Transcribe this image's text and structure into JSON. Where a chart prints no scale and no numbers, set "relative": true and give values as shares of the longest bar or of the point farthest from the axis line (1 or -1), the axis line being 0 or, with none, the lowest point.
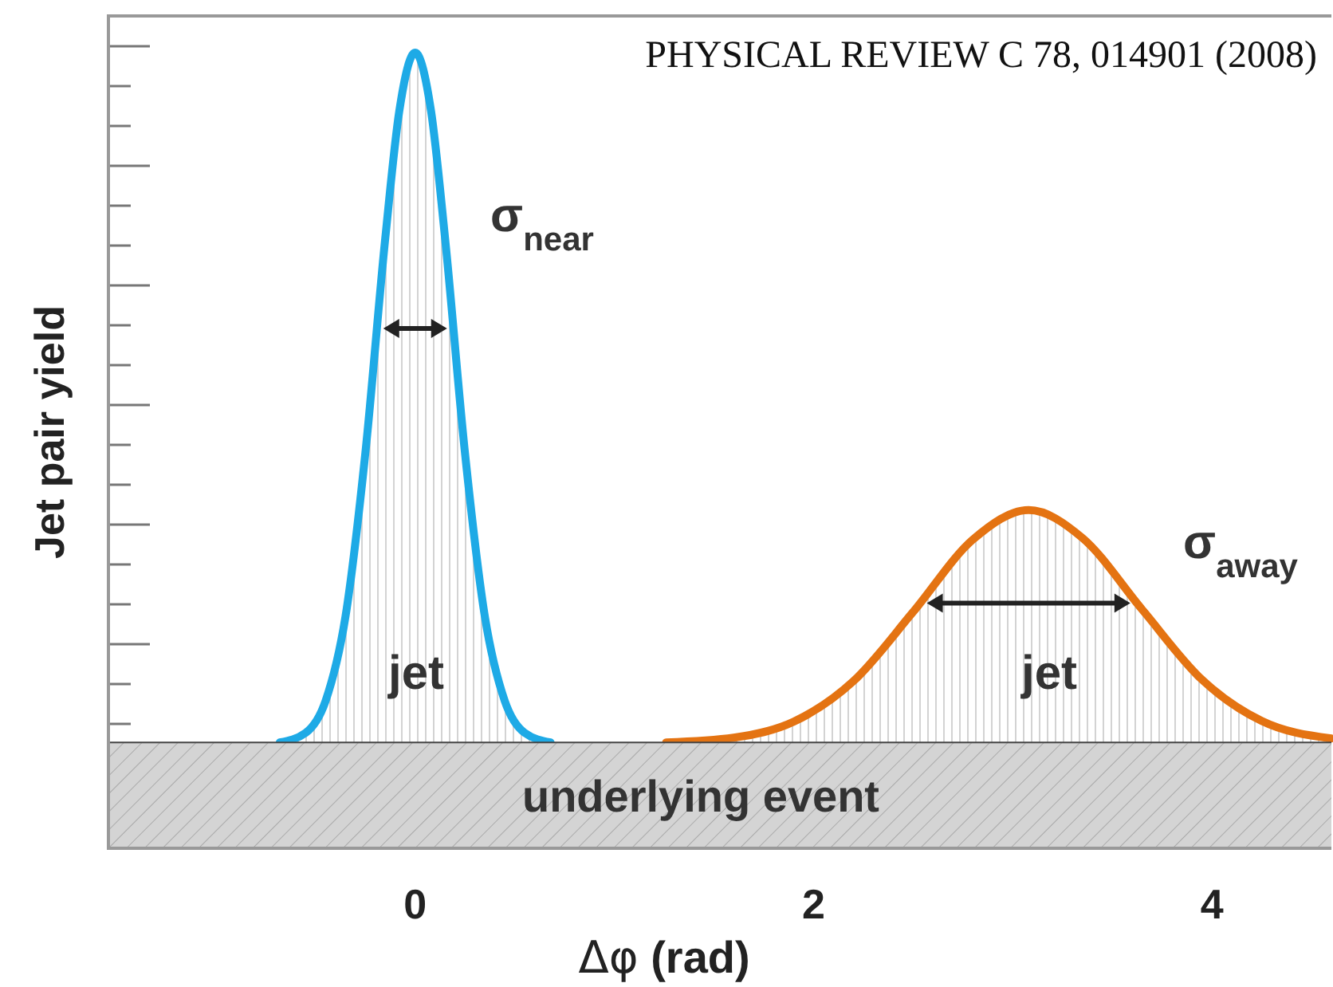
{
  "chart_data": {
    "type": "area",
    "relative": true,
    "xlabel": "Δφ (rad)",
    "ylabel": "Jet pair yield",
    "xlim": [
      -1.54,
      4.6
    ],
    "xticks": [
      0,
      2,
      4
    ],
    "series": [
      {
        "color": "#1eaae6",
        "x": [
          -0.68,
          -0.55,
          -0.45,
          -0.35,
          -0.25,
          -0.15,
          -0.08,
          0,
          0.08,
          0.15,
          0.25,
          0.35,
          0.45,
          0.55,
          0.68
        ],
        "values": [
          0.133,
          0.145,
          0.185,
          0.291,
          0.497,
          0.767,
          0.926,
          1.0,
          0.926,
          0.767,
          0.497,
          0.291,
          0.185,
          0.145,
          0.133
        ]
      },
      {
        "color": "#e47312",
        "x": [
          1.26,
          1.6,
          1.9,
          2.2,
          2.5,
          2.8,
          3.08,
          3.35,
          3.65,
          3.95,
          4.25,
          4.6
        ],
        "values": [
          0.133,
          0.139,
          0.159,
          0.21,
          0.297,
          0.388,
          0.425,
          0.39,
          0.3,
          0.212,
          0.16,
          0.138
        ]
      }
    ],
    "bands": [
      {
        "axis": "y",
        "from": 0,
        "to": 0.132,
        "label": "underlying event",
        "color": "#d4d4d4"
      }
    ],
    "ref_lines": [
      {
        "axis": "y",
        "value": 0.132,
        "color": "#444444"
      }
    ],
    "annotations": [
      "PHYSICAL REVIEW C 78, 014901 (2008)",
      "σ$_{near}$",
      "σ$_{away}$",
      "jet",
      "jet"
    ]
  }
}
